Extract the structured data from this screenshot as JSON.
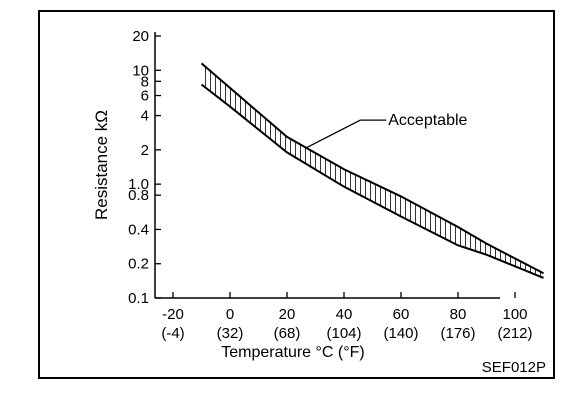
{
  "figure_id": "SEF012P",
  "chart_data": {
    "type": "area",
    "title": "",
    "xlabel": "Temperature °C (°F)",
    "ylabel": "Resistance kΩ",
    "y_scale": "log",
    "xlim": [
      -30,
      120
    ],
    "ylim": [
      0.1,
      22
    ],
    "grid": false,
    "x_ticks": [
      {
        "value": -20,
        "label": "-20",
        "sublabel": "(-4)"
      },
      {
        "value": 0,
        "label": "0",
        "sublabel": "(32)"
      },
      {
        "value": 20,
        "label": "20",
        "sublabel": "(68)"
      },
      {
        "value": 40,
        "label": "40",
        "sublabel": "(104)"
      },
      {
        "value": 60,
        "label": "60",
        "sublabel": "(140)"
      },
      {
        "value": 80,
        "label": "80",
        "sublabel": "(176)"
      },
      {
        "value": 100,
        "label": "100",
        "sublabel": "(212)"
      }
    ],
    "y_ticks": [
      {
        "value": 20,
        "label": "20"
      },
      {
        "value": 10,
        "label": "10"
      },
      {
        "value": 8,
        "label": "8"
      },
      {
        "value": 6,
        "label": "6"
      },
      {
        "value": 4,
        "label": "4"
      },
      {
        "value": 2,
        "label": "2"
      },
      {
        "value": 1.0,
        "label": "1.0"
      },
      {
        "value": 0.8,
        "label": "0.8"
      },
      {
        "value": 0.4,
        "label": "0.4"
      },
      {
        "value": 0.2,
        "label": "0.2"
      },
      {
        "value": 0.1,
        "label": "0.1"
      }
    ],
    "series": [
      {
        "x": [
          -10,
          0,
          20,
          40,
          60,
          80,
          90,
          110
        ],
        "y_upper": [
          11.5,
          7.0,
          2.6,
          1.35,
          0.78,
          0.42,
          0.3,
          0.165
        ],
        "y_lower": [
          7.5,
          4.8,
          1.9,
          0.95,
          0.52,
          0.29,
          0.24,
          0.15
        ]
      }
    ],
    "annotations": [
      {
        "text": "Acceptable",
        "x": 45,
        "y": 3.8
      }
    ]
  }
}
